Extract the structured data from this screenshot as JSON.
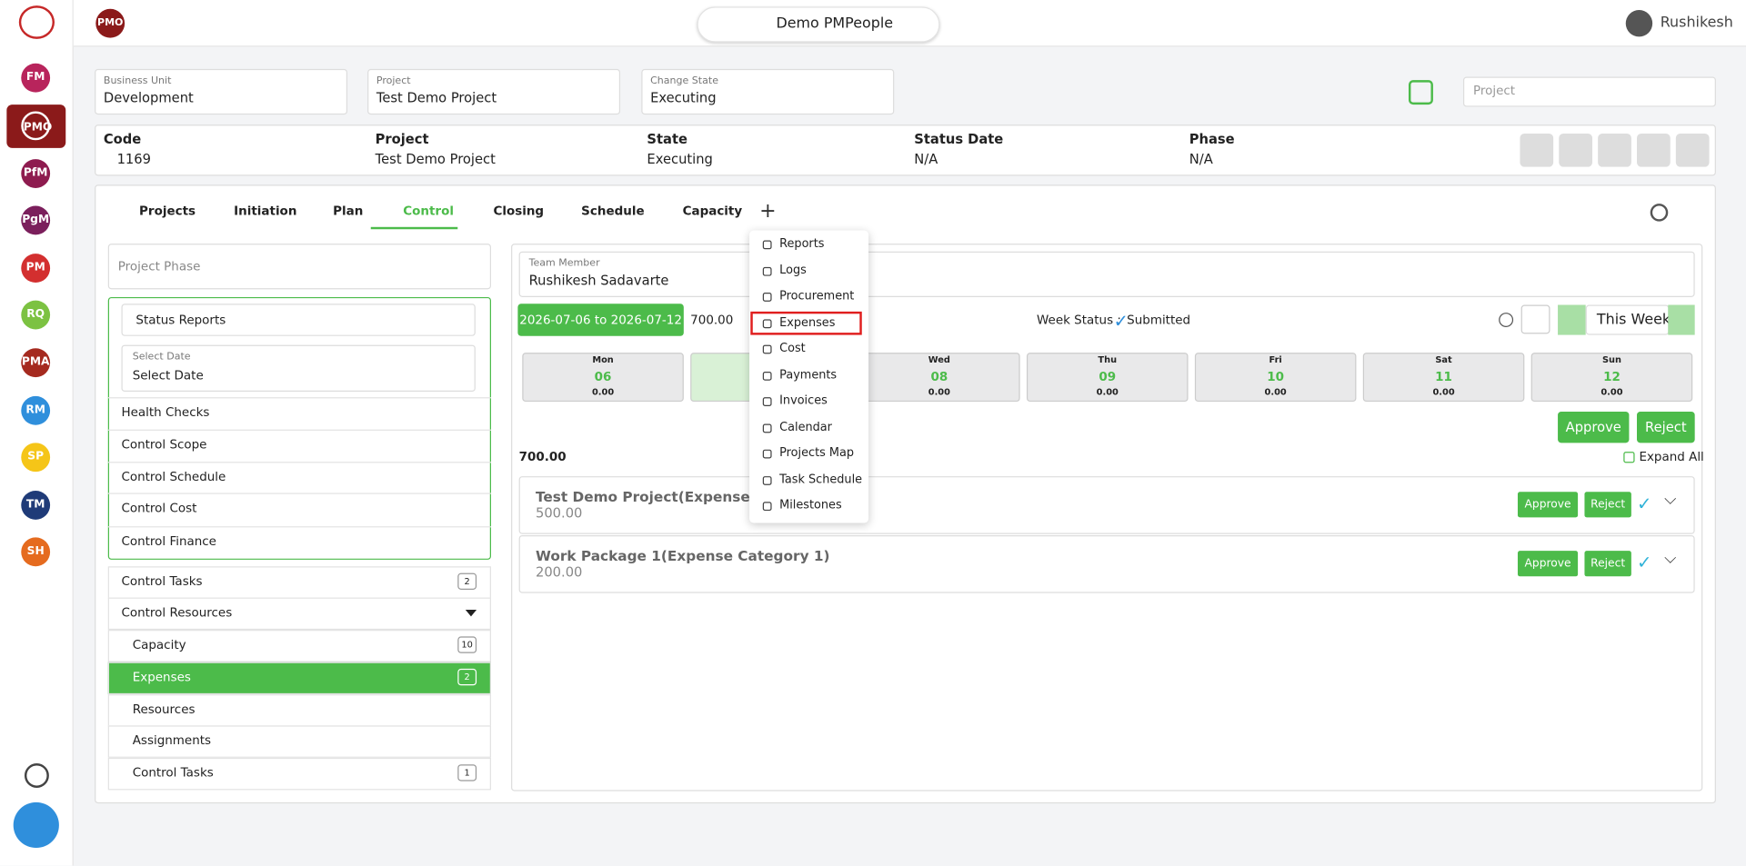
{
  "sidebar": {
    "apps": [
      "FM",
      "PMO",
      "PfM",
      "PgM",
      "PM",
      "RQ",
      "PMA",
      "RM",
      "SP",
      "TM",
      "SH"
    ]
  },
  "topbar": {
    "badge": "PMO",
    "workspace": "Demo PMPeople",
    "user": "Rushikesh"
  },
  "filters": [
    {
      "label": "Business Unit",
      "value": "Development"
    },
    {
      "label": "Project",
      "value": "Test Demo Project"
    },
    {
      "label": "Change State",
      "value": "Executing"
    }
  ],
  "search": {
    "placeholder": "Project"
  },
  "info": [
    {
      "label": "Code",
      "value": "1169"
    },
    {
      "label": "Project",
      "value": "Test Demo Project"
    },
    {
      "label": "State",
      "value": "Executing"
    },
    {
      "label": "Status Date",
      "value": "N/A"
    },
    {
      "label": "Phase",
      "value": "N/A"
    }
  ],
  "tabs": [
    "Projects",
    "Initiation",
    "Plan",
    "Control",
    "Closing",
    "Schedule",
    "Capacity"
  ],
  "left": {
    "phase": "Project Phase",
    "report": "Status Reports",
    "date_label": "Select Date",
    "date_value": "Select Date",
    "items": [
      "Health Checks",
      "Control Scope",
      "Control Schedule",
      "Control Cost",
      "Control Finance"
    ],
    "list": [
      {
        "label": "Control Tasks",
        "count": "2"
      },
      {
        "label": "Control Resources"
      },
      {
        "label": "Capacity",
        "count": "10"
      },
      {
        "label": "Expenses",
        "count": "2"
      },
      {
        "label": "Resources"
      },
      {
        "label": "Assignments"
      },
      {
        "label": "Control Tasks",
        "count": "1"
      }
    ]
  },
  "right": {
    "member_label": "Team Member",
    "member": "Rushikesh Sadavarte",
    "range": "2026-07-06 to 2026-07-12",
    "total": "700.00",
    "week_status": "Week Status :",
    "status": "Submitted",
    "this_week": "This Week",
    "days": [
      {
        "day": "Mon",
        "date": "06",
        "amount": "0.00"
      },
      null,
      {
        "day": "Wed",
        "date": "08",
        "amount": "0.00"
      },
      {
        "day": "Thu",
        "date": "09",
        "amount": "0.00"
      },
      {
        "day": "Fri",
        "date": "10",
        "amount": "0.00"
      },
      {
        "day": "Sat",
        "date": "11",
        "amount": "0.00"
      },
      {
        "day": "Sun",
        "date": "12",
        "amount": "0.00"
      }
    ],
    "approve": "Approve",
    "reject": "Reject",
    "sum": "700.00",
    "expand": "Expand All",
    "rows": [
      {
        "title": "Test Demo Project(Expense Category 1)",
        "amount": "500.00",
        "approve": "Approve",
        "reject": "Reject"
      },
      {
        "title": "Work Package 1(Expense Category 1)",
        "amount": "200.00",
        "approve": "Approve",
        "reject": "Reject"
      }
    ]
  },
  "menu": [
    "Reports",
    "Logs",
    "Procurement",
    "Expenses",
    "Cost",
    "Payments",
    "Invoices",
    "Calendar",
    "Projects Map",
    "Task Schedule",
    "Milestones"
  ]
}
